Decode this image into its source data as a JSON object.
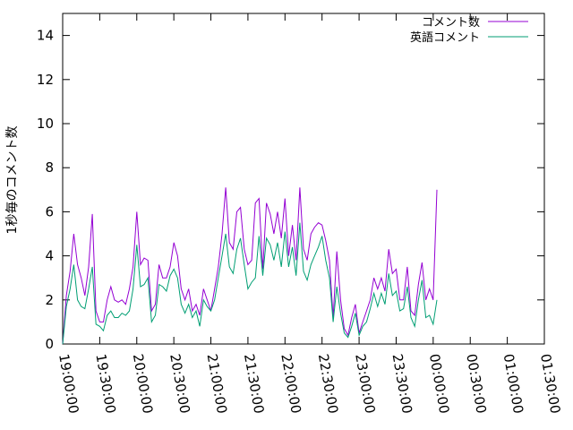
{
  "chart_data": {
    "type": "line",
    "title": "",
    "xlabel": "",
    "ylabel": "1秒毎のコメント数",
    "xlim": [
      "19:00:00",
      "01:30:00"
    ],
    "ylim": [
      0,
      15
    ],
    "x_ticks": [
      "19:00:00",
      "19:30:00",
      "20:00:00",
      "20:30:00",
      "21:00:00",
      "21:30:00",
      "22:00:00",
      "22:30:00",
      "23:00:00",
      "23:30:00",
      "00:00:00",
      "00:30:00",
      "01:00:00",
      "01:30:00"
    ],
    "y_ticks": [
      "0",
      "2",
      "4",
      "6",
      "8",
      "10",
      "12",
      "14"
    ],
    "grid": false,
    "legend_position": "top-right",
    "x": [
      "19:00:00",
      "19:03:00",
      "19:06:00",
      "19:09:00",
      "19:12:00",
      "19:15:00",
      "19:18:00",
      "19:21:00",
      "19:24:00",
      "19:27:00",
      "19:30:00",
      "19:33:00",
      "19:36:00",
      "19:39:00",
      "19:42:00",
      "19:45:00",
      "19:48:00",
      "19:51:00",
      "19:54:00",
      "19:57:00",
      "20:00:00",
      "20:03:00",
      "20:06:00",
      "20:09:00",
      "20:12:00",
      "20:15:00",
      "20:18:00",
      "20:21:00",
      "20:24:00",
      "20:27:00",
      "20:30:00",
      "20:33:00",
      "20:36:00",
      "20:39:00",
      "20:42:00",
      "20:45:00",
      "20:48:00",
      "20:51:00",
      "20:54:00",
      "20:57:00",
      "21:00:00",
      "21:03:00",
      "21:06:00",
      "21:09:00",
      "21:12:00",
      "21:15:00",
      "21:18:00",
      "21:21:00",
      "21:24:00",
      "21:27:00",
      "21:30:00",
      "21:33:00",
      "21:36:00",
      "21:39:00",
      "21:42:00",
      "21:45:00",
      "21:48:00",
      "21:51:00",
      "21:54:00",
      "21:57:00",
      "22:00:00",
      "22:03:00",
      "22:06:00",
      "22:09:00",
      "22:12:00",
      "22:15:00",
      "22:18:00",
      "22:21:00",
      "22:24:00",
      "22:27:00",
      "22:30:00",
      "22:33:00",
      "22:36:00",
      "22:39:00",
      "22:42:00",
      "22:45:00",
      "22:48:00",
      "22:51:00",
      "22:54:00",
      "22:57:00",
      "23:00:00",
      "23:03:00",
      "23:06:00",
      "23:09:00",
      "23:12:00",
      "23:15:00",
      "23:18:00",
      "23:21:00",
      "23:24:00",
      "23:27:00",
      "23:30:00",
      "23:33:00",
      "23:36:00",
      "23:39:00",
      "23:42:00",
      "23:45:00",
      "23:48:00",
      "23:51:00",
      "23:54:00",
      "23:57:00",
      "00:00:00",
      "00:03:00",
      "00:06:00",
      "00:09:00",
      "00:12:00",
      "00:15:00",
      "00:18:00",
      "00:21:00",
      "00:24:00",
      "00:27:00",
      "00:30:00",
      "00:33:00",
      "00:36:00",
      "00:39:00",
      "00:42:00",
      "00:45:00",
      "00:48:00",
      "00:51:00",
      "00:54:00",
      "00:57:00",
      "01:00:00"
    ],
    "series": [
      {
        "name": "コメント数",
        "color": "#9400d3",
        "values": [
          0.0,
          2.2,
          3.3,
          5.0,
          3.6,
          3.0,
          2.2,
          3.5,
          5.9,
          1.5,
          1.0,
          1.0,
          2.0,
          2.6,
          2.0,
          1.9,
          2.0,
          1.8,
          2.5,
          3.5,
          6.0,
          3.6,
          3.9,
          3.8,
          1.5,
          1.8,
          3.6,
          3.0,
          3.0,
          3.5,
          4.6,
          4.0,
          2.5,
          2.0,
          2.5,
          1.5,
          1.8,
          1.3,
          2.5,
          2.0,
          1.5,
          2.5,
          3.5,
          5.0,
          7.1,
          4.6,
          4.3,
          6.0,
          6.2,
          4.3,
          3.6,
          3.8,
          6.4,
          6.6,
          3.4,
          6.4,
          5.9,
          5.0,
          6.0,
          4.8,
          6.6,
          4.0,
          5.4,
          3.8,
          7.1,
          4.3,
          3.8,
          5.0,
          5.3,
          5.5,
          5.4,
          4.7,
          3.8,
          1.2,
          4.2,
          2.0,
          0.7,
          0.4,
          1.2,
          1.8,
          0.5,
          1.0,
          1.5,
          2.0,
          3.0,
          2.5,
          3.0,
          2.4,
          4.3,
          3.2,
          3.4,
          2.0,
          2.0,
          3.5,
          1.5,
          1.3,
          2.7,
          3.7,
          2.0,
          2.5,
          2.0,
          7.0,
          null,
          null,
          null,
          null,
          null,
          null,
          null,
          null,
          null,
          null,
          null,
          null,
          null,
          null,
          null,
          null,
          null,
          null,
          null
        ]
      },
      {
        "name": "英語コメント",
        "color": "#009e73",
        "values": [
          0.0,
          1.7,
          2.5,
          3.6,
          2.0,
          1.7,
          1.6,
          2.5,
          3.5,
          0.9,
          0.8,
          0.6,
          1.3,
          1.5,
          1.2,
          1.2,
          1.4,
          1.3,
          1.5,
          2.5,
          4.5,
          2.6,
          2.7,
          3.0,
          1.0,
          1.3,
          2.7,
          2.6,
          2.4,
          3.1,
          3.4,
          3.0,
          1.8,
          1.4,
          1.8,
          1.2,
          1.5,
          0.8,
          2.0,
          1.7,
          1.5,
          2.0,
          3.0,
          4.0,
          5.0,
          3.5,
          3.2,
          4.3,
          4.8,
          3.6,
          2.5,
          2.8,
          3.0,
          4.9,
          3.1,
          4.8,
          4.5,
          3.8,
          4.6,
          3.5,
          5.1,
          3.5,
          4.4,
          3.1,
          5.5,
          3.3,
          2.9,
          3.6,
          4.0,
          4.4,
          4.9,
          3.8,
          3.0,
          1.0,
          2.6,
          1.4,
          0.5,
          0.3,
          0.8,
          1.4,
          0.4,
          0.8,
          1.0,
          1.6,
          2.3,
          1.7,
          2.3,
          1.8,
          3.2,
          2.2,
          2.4,
          1.5,
          1.6,
          2.6,
          1.2,
          0.8,
          2.0,
          2.9,
          1.2,
          1.3,
          0.9,
          2.0,
          null,
          null,
          null,
          null,
          null,
          null,
          null,
          null,
          null,
          null,
          null,
          null,
          null,
          null,
          null,
          null,
          null,
          null,
          null
        ]
      }
    ]
  }
}
